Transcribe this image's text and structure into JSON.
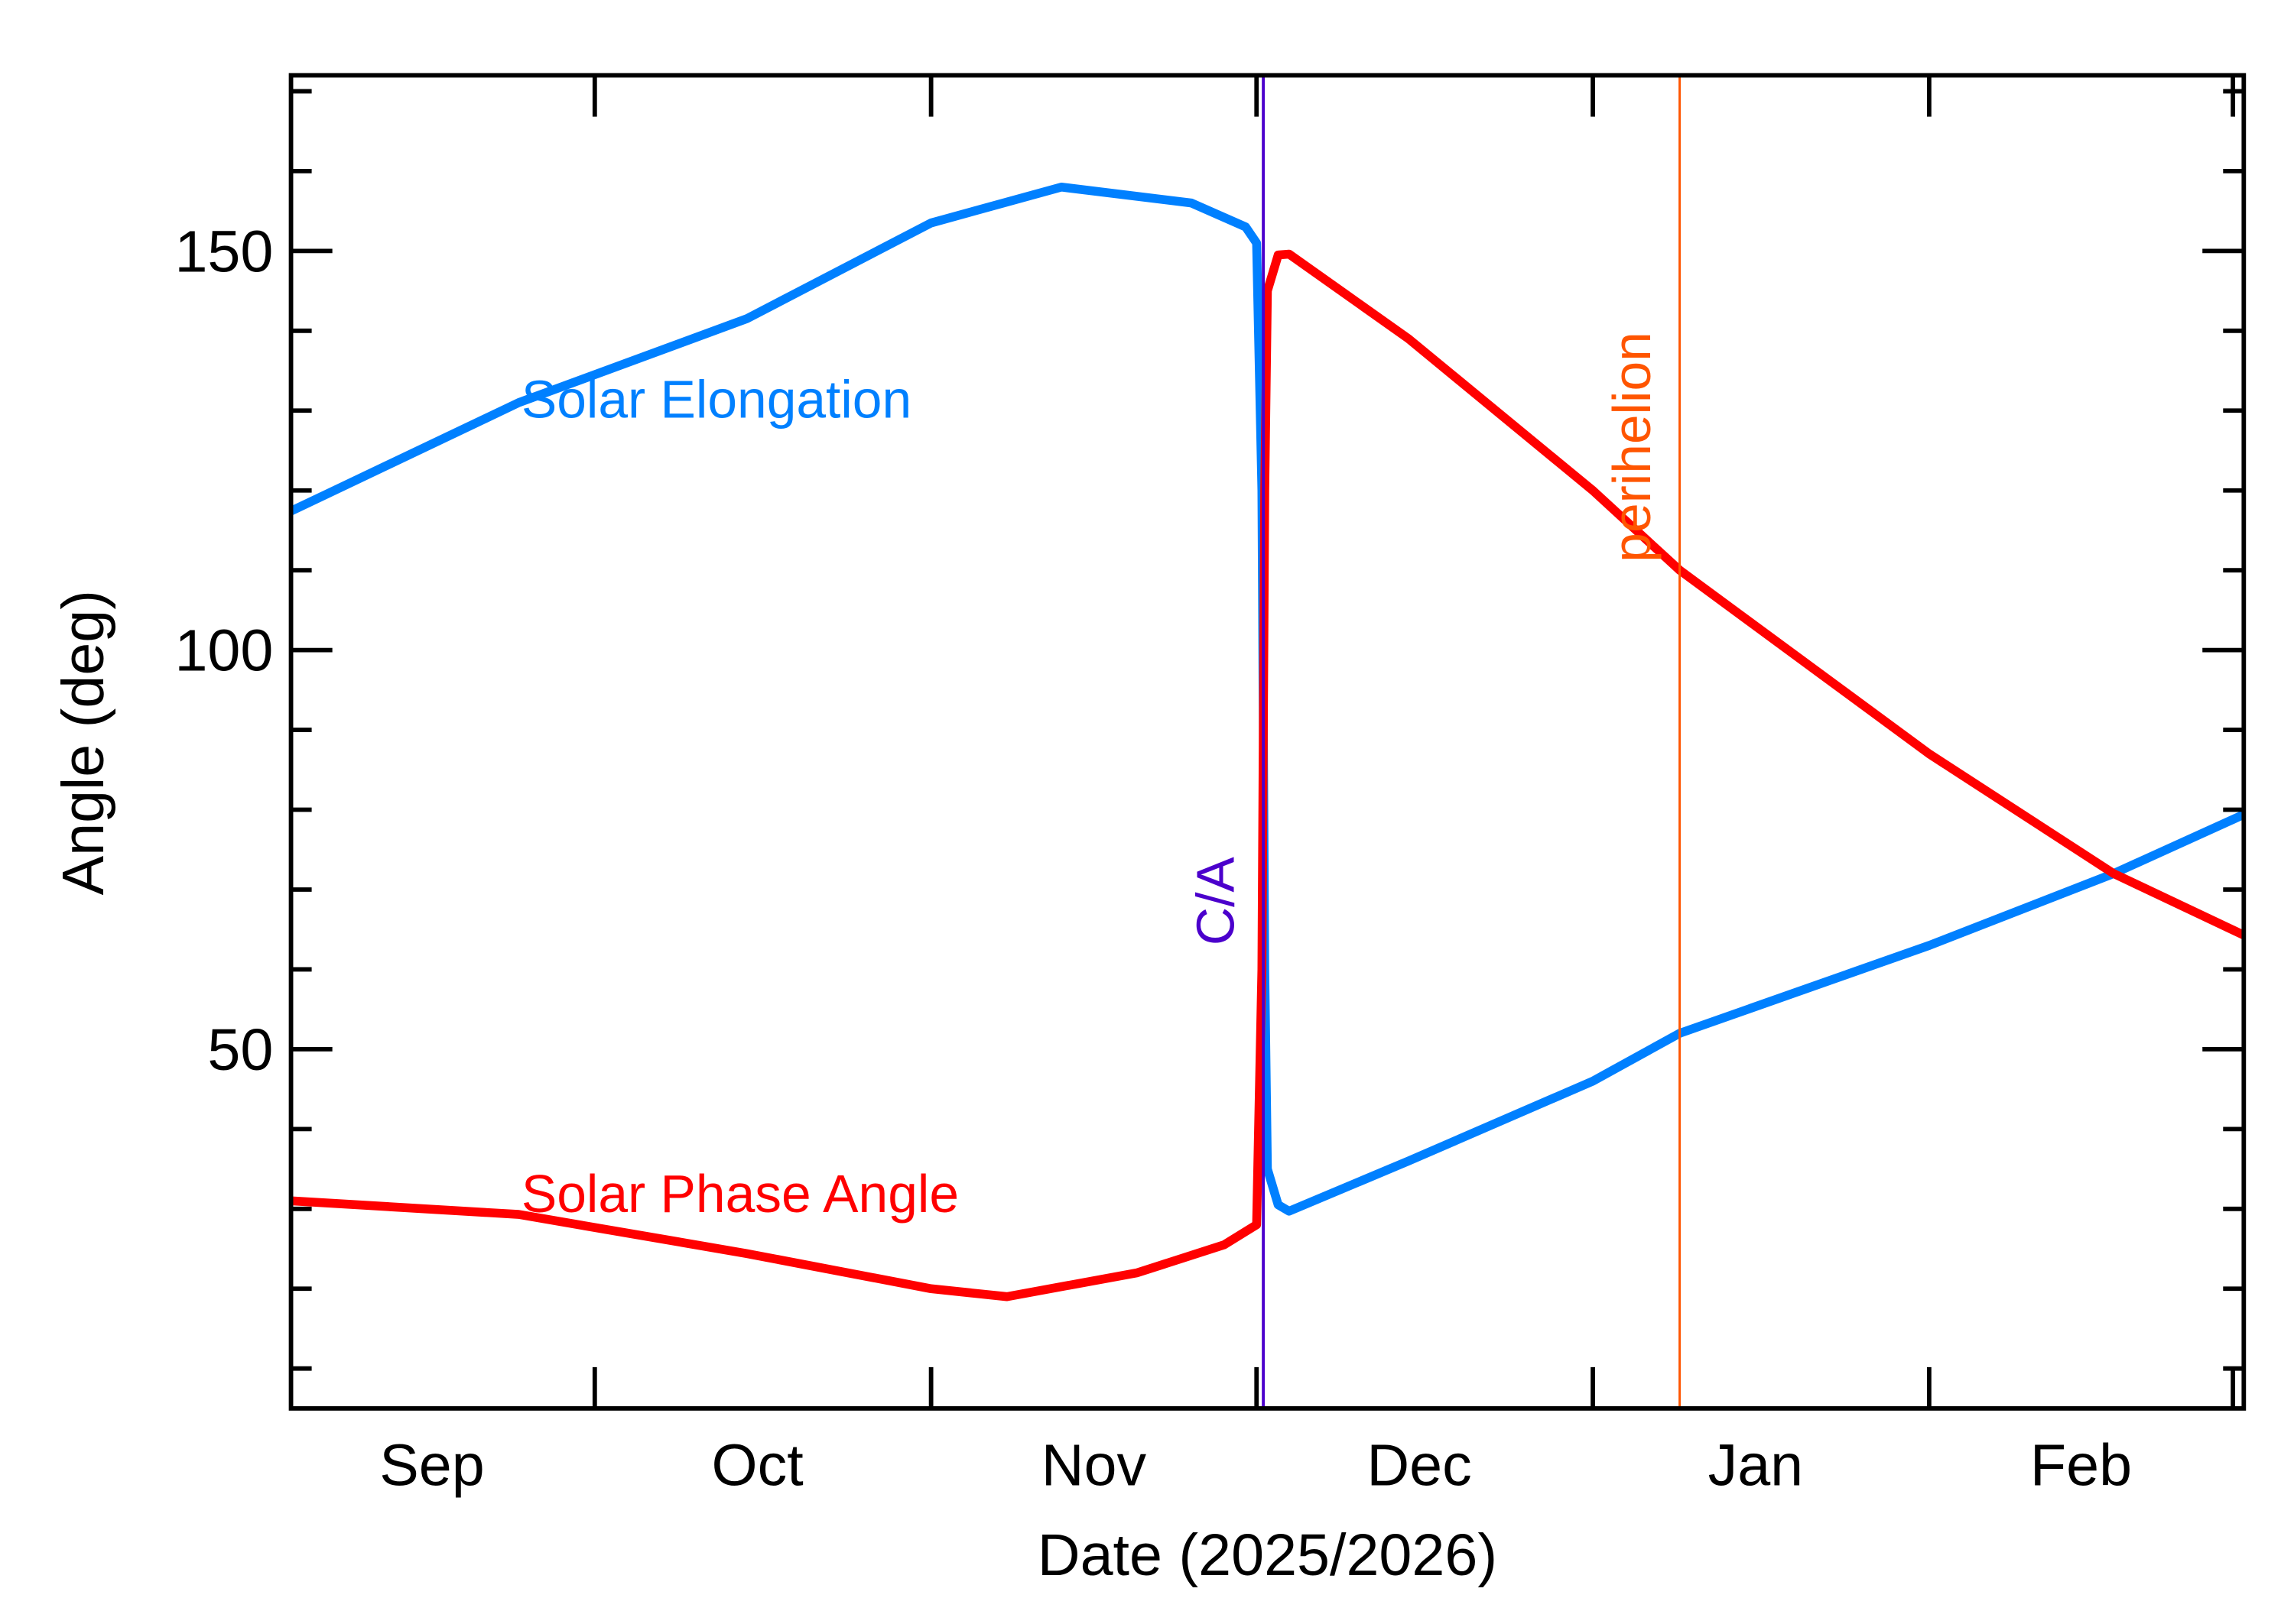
{
  "chart_data": {
    "type": "line",
    "title": "",
    "xlabel": "Date (2025/2026)",
    "ylabel": "Angle (deg)",
    "xlim": [
      "2025-09-03",
      "2026-03-02"
    ],
    "ylim": [
      5,
      172
    ],
    "x_tick_labels": [
      "Sep",
      "Oct",
      "Nov",
      "Dec",
      "Jan",
      "Feb"
    ],
    "x_month_starts": [
      "2025-10-01",
      "2025-11-01",
      "2025-12-01",
      "2026-01-01",
      "2026-02-01",
      "2026-03-01"
    ],
    "x_label_dates": [
      "2025-09-16",
      "2025-10-16",
      "2025-11-16",
      "2025-12-16",
      "2026-01-16",
      "2026-02-15"
    ],
    "y_ticks": [
      50,
      100,
      150
    ],
    "y_minor_step": 10,
    "grid": false,
    "series": [
      {
        "name": "Solar Elongation",
        "color": "#0080ff",
        "points": [
          [
            "2025-09-03",
            117.4
          ],
          [
            "2025-09-24",
            131
          ],
          [
            "2025-10-15",
            141.5
          ],
          [
            "2025-11-01",
            153.5
          ],
          [
            "2025-11-13",
            158
          ],
          [
            "2025-11-25",
            156
          ],
          [
            "2025-11-30",
            153
          ],
          [
            "2025-12-01T00:00",
            151
          ],
          [
            "2025-12-01T12:00",
            120
          ],
          [
            "2025-12-01T18:00",
            60
          ],
          [
            "2025-12-02T00:00",
            35
          ],
          [
            "2025-12-03T00:00",
            30.5
          ],
          [
            "2025-12-04T00:00",
            29.7
          ],
          [
            "2025-12-15",
            36
          ],
          [
            "2026-01-01",
            46
          ],
          [
            "2026-01-09",
            52
          ],
          [
            "2026-02-01",
            63
          ],
          [
            "2026-02-18",
            72
          ],
          [
            "2026-03-02",
            79.4
          ]
        ]
      },
      {
        "name": "Solar Phase Angle",
        "color": "#ff0000",
        "points": [
          [
            "2025-09-03",
            31
          ],
          [
            "2025-09-24",
            29.3
          ],
          [
            "2025-10-15",
            24.4
          ],
          [
            "2025-11-01",
            20
          ],
          [
            "2025-11-08",
            19
          ],
          [
            "2025-11-20",
            22
          ],
          [
            "2025-11-28",
            25.5
          ],
          [
            "2025-12-01T00:00",
            28
          ],
          [
            "2025-12-01T12:00",
            60
          ],
          [
            "2025-12-01T18:00",
            120
          ],
          [
            "2025-12-02T00:00",
            145
          ],
          [
            "2025-12-03T00:00",
            149.5
          ],
          [
            "2025-12-04T00:00",
            149.6
          ],
          [
            "2025-12-15",
            139
          ],
          [
            "2026-01-01",
            120
          ],
          [
            "2026-01-09",
            110
          ],
          [
            "2026-02-01",
            87
          ],
          [
            "2026-02-18",
            72
          ],
          [
            "2026-03-02",
            64.3
          ]
        ]
      }
    ],
    "annotations": [
      {
        "label": "C/A",
        "date": "2025-12-01T15:00",
        "color": "#4b00cc"
      },
      {
        "label": "perihelion",
        "date": "2026-01-09",
        "color": "#ff5500"
      }
    ]
  }
}
